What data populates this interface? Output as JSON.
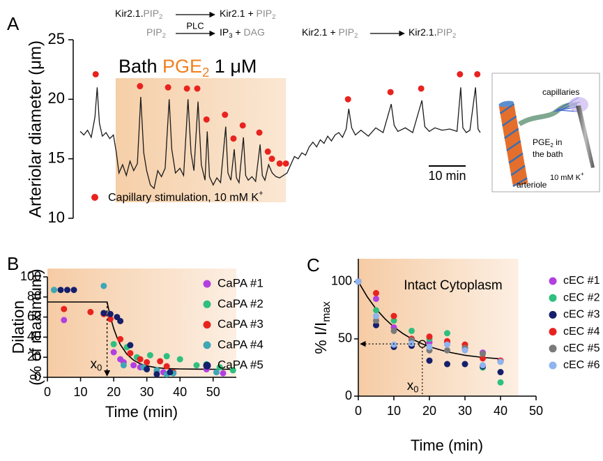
{
  "chart_data": [
    {
      "type": "line",
      "panel_label": "A",
      "ylabel": "Arteriolar diameter (μm)",
      "ylim": [
        10,
        25
      ],
      "yticks": [
        10,
        15,
        20,
        25
      ],
      "xlim": [
        0,
        108.5
      ],
      "color": "#1a1a1a",
      "x": [
        0,
        1,
        2,
        3,
        4,
        4.6,
        5.2,
        6,
        7,
        8,
        9,
        9.8,
        10.5,
        11.5,
        12.5,
        13.5,
        14.5,
        15.5,
        16.4,
        17.2,
        18,
        19,
        20,
        21,
        22,
        23,
        24.1,
        24.8,
        25.8,
        27,
        28,
        29.2,
        30,
        30.8,
        31.9,
        32.8,
        33.8,
        34.4,
        35,
        36,
        37,
        38,
        39.4,
        40,
        40.8,
        41.7,
        42.3,
        43,
        44.2,
        44.8,
        45.5,
        46.5,
        47.5,
        48.7,
        49.3,
        50,
        51,
        52,
        53,
        54,
        55,
        56,
        57,
        58,
        59,
        60,
        61,
        62,
        63,
        64,
        65,
        66,
        67,
        68,
        69,
        70,
        71,
        72,
        72.7,
        73.5,
        74.5,
        76,
        78,
        80,
        82,
        84.2,
        85,
        86,
        88,
        90,
        92.5,
        93.3,
        94.5,
        96,
        98,
        100,
        102,
        103,
        103.6,
        104.5,
        105.5,
        107,
        107.7,
        108.3
      ],
      "values": [
        17.3,
        17.0,
        17.4,
        16.8,
        18.5,
        21.0,
        18.0,
        16.9,
        17.2,
        16.7,
        17.0,
        15.5,
        13.8,
        14.5,
        13.6,
        14.8,
        14.0,
        14.6,
        20.2,
        15.5,
        14.0,
        12.8,
        12.5,
        14.0,
        13.5,
        14.2,
        20.0,
        15.8,
        13.8,
        14.2,
        13.6,
        20.0,
        15.5,
        14.0,
        19.8,
        14.5,
        13.2,
        17.3,
        13.5,
        12.8,
        13.4,
        13.0,
        17.7,
        13.8,
        13.2,
        15.8,
        13.4,
        13.0,
        16.8,
        13.6,
        13.2,
        13.5,
        13.1,
        16.2,
        13.6,
        13.2,
        14.5,
        13.8,
        13.5,
        13.4,
        13.6,
        13.8,
        14.5,
        15.2,
        15.0,
        15.5,
        15.3,
        16.0,
        16.4,
        16.0,
        16.6,
        16.3,
        16.9,
        16.5,
        17.0,
        17.2,
        16.8,
        17.5,
        19.2,
        17.6,
        17.0,
        17.4,
        16.9,
        17.6,
        17.2,
        19.6,
        17.8,
        17.3,
        17.6,
        17.2,
        19.9,
        17.7,
        17.3,
        17.6,
        17.4,
        17.5,
        17.3,
        21.0,
        17.6,
        17.2,
        17.4,
        21.0,
        17.5,
        17.2
      ],
      "stimulation": {
        "name": "Capillary stimulation, 10 mM K",
        "name_sup": "+",
        "color": "#e8231f",
        "x": [
          4.2,
          16.2,
          23.8,
          28.9,
          31.7,
          34.2,
          39.2,
          41.5,
          44.0,
          48.5,
          50.8,
          51.9,
          54.0,
          55.7,
          72.5,
          84.0,
          92.3,
          102.8,
          107.5
        ],
        "values": [
          22.1,
          21.1,
          21.0,
          20.9,
          20.9,
          18.3,
          18.7,
          16.7,
          17.8,
          17.2,
          15.6,
          15.0,
          14.6,
          14.6,
          20.0,
          20.6,
          20.9,
          22.1,
          22.1
        ]
      },
      "bath": {
        "label": [
          "Bath ",
          "PGE",
          "2",
          " 1 μM"
        ],
        "start": 9.6,
        "end": 55.7,
        "color": "#f5cfa8"
      },
      "scale_bar": {
        "length": 10,
        "label": "10 min"
      },
      "reactions": [
        [
          "Kir2.1.",
          "PIP",
          "2",
          "Kir2.1 + ",
          "PIP",
          "2"
        ],
        [
          "PIP",
          "2",
          "PLC",
          "IP",
          "3",
          " + ",
          "DAG"
        ],
        [
          "Kir2.1 + ",
          "PIP",
          "2",
          "Kir2.1.",
          "PIP",
          "2"
        ]
      ]
    },
    {
      "type": "scatter",
      "panel_label": "B",
      "ylabel": [
        "Dilation",
        "(% of maximum)"
      ],
      "xlabel": "Time (min)",
      "xlim": [
        0,
        57
      ],
      "ylim": [
        0,
        100
      ],
      "xticks": [
        0,
        10,
        20,
        30,
        40,
        50
      ],
      "yticks": [
        0,
        20,
        40,
        60,
        80,
        100
      ],
      "shading": {
        "color": "#f5c9a0",
        "start": 0,
        "end": 57
      },
      "series": [
        {
          "name": "CaPA #1",
          "color": "#b23fe0",
          "x": [
            5,
            20,
            22,
            23,
            26,
            28,
            33,
            35,
            38,
            48,
            53
          ],
          "values": [
            57,
            25,
            18,
            15,
            12,
            10,
            6,
            5,
            4,
            8,
            4
          ]
        },
        {
          "name": "CaPA #2",
          "color": "#2fbf7f",
          "x": [
            2,
            20,
            24,
            27,
            31,
            36,
            40,
            45,
            48,
            52,
            56
          ],
          "values": [
            87,
            33,
            30,
            20,
            22,
            21,
            18,
            12,
            13,
            10,
            7
          ]
        },
        {
          "name": "CaPA #3",
          "color": "#e8231f",
          "x": [
            5,
            13,
            17,
            19,
            22,
            25,
            28,
            30,
            34,
            36,
            38
          ],
          "values": [
            68,
            65,
            63,
            58,
            38,
            24,
            18,
            15,
            16,
            11,
            5
          ]
        },
        {
          "name": "CaPA #4",
          "color": "#3fa6b5",
          "x": [
            2,
            17,
            23,
            29,
            33,
            36,
            38,
            51
          ],
          "values": [
            87,
            91,
            12,
            10,
            7,
            3,
            4,
            5
          ]
        },
        {
          "name": "CaPA #5",
          "color": "#151f6b",
          "x": [
            4,
            6,
            8,
            17,
            19,
            21,
            22,
            25,
            30,
            33,
            37
          ],
          "values": [
            87,
            87,
            87,
            64,
            63,
            60,
            56,
            32,
            8,
            3,
            5
          ]
        }
      ],
      "fit": {
        "color": "#000000",
        "x": [
          0,
          18,
          19,
          20,
          21,
          22,
          24,
          26,
          28,
          30,
          33,
          36,
          40,
          45,
          50,
          56
        ],
        "values": [
          75,
          75,
          60.2,
          48.6,
          39.7,
          32.6,
          22.9,
          17.1,
          13.5,
          11.3,
          9.6,
          8.7,
          8.3,
          8.1,
          8.0,
          8.0
        ]
      },
      "x0": {
        "label": "x",
        "label_sub": "0",
        "value": 18
      }
    },
    {
      "type": "scatter",
      "panel_label": "C",
      "ylabel": {
        "text": "% I/I",
        "sub": "max"
      },
      "xlabel": "Time (min)",
      "annotation": "Intact Cytoplasm",
      "xlim": [
        0,
        50
      ],
      "ylim": [
        0,
        120
      ],
      "xticks": [
        0,
        10,
        20,
        30,
        40,
        50
      ],
      "yticks": [
        0,
        50,
        100
      ],
      "shading": {
        "color": "#f5c9a0",
        "start": 0,
        "end": 45
      },
      "x": [
        0,
        5,
        10,
        15,
        20,
        25,
        30,
        35,
        40
      ],
      "series": [
        {
          "name": "cEC #1",
          "color": "#b23fe0",
          "values": [
            100,
            85,
            60,
            50,
            47,
            47,
            42,
            38,
            31
          ]
        },
        {
          "name": "cEC #2",
          "color": "#2fbf7f",
          "values": [
            100,
            75,
            66,
            57,
            50,
            55,
            45,
            25,
            12
          ]
        },
        {
          "name": "cEC #3",
          "color": "#151f6b",
          "values": [
            100,
            62,
            43,
            44,
            31,
            28,
            28,
            26,
            21
          ]
        },
        {
          "name": "cEC #4",
          "color": "#e8231f",
          "values": [
            100,
            90,
            70,
            50,
            52,
            48,
            45,
            33,
            31
          ]
        },
        {
          "name": "cEC #5",
          "color": "#7a7a7a",
          "values": [
            100,
            66,
            57,
            49,
            40,
            40,
            42,
            37,
            30
          ]
        },
        {
          "name": "cEC #6",
          "color": "#8fb4ef",
          "values": [
            100,
            70,
            45,
            46,
            43,
            45,
            40,
            27,
            30
          ]
        }
      ],
      "fit": {
        "color": "#000000",
        "x": [
          0,
          2.5,
          5,
          7.5,
          10,
          12.5,
          15,
          18,
          20,
          25,
          30,
          35,
          40
        ],
        "values": [
          100,
          86.8,
          76.1,
          67.5,
          60.4,
          54.7,
          50.1,
          45.6,
          43.2,
          38.7,
          35.7,
          33.8,
          32.5
        ]
      },
      "x0": {
        "label": "x",
        "label_sub": "0",
        "x": 18,
        "y": 45.6
      }
    }
  ],
  "inset": {
    "capillaries": "capillaries",
    "drug": [
      "PGE",
      "2",
      " in"
    ],
    "bath": "the bath",
    "vessel": "arteriole",
    "electrode": [
      "10 mM K",
      "+"
    ]
  }
}
